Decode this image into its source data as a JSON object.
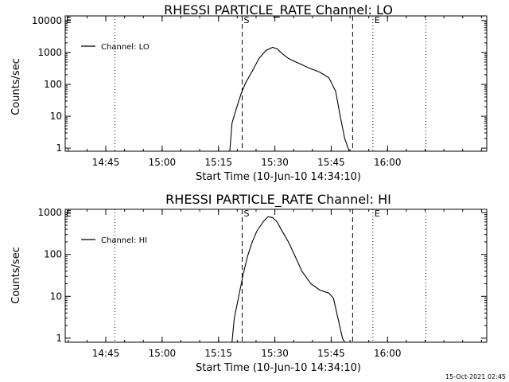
{
  "timestamp": "15-Oct-2021 02:45",
  "chart_data": [
    {
      "type": "line",
      "title": "RHESSI PARTICLE_RATE Channel: LO",
      "xlabel": "Start Time (10-Jun-10 14:34:10)",
      "ylabel": "Counts/sec",
      "yscale": "log",
      "xlim": [
        14.57,
        16.44
      ],
      "ylim": [
        0.8,
        14000
      ],
      "xticks": [
        {
          "t": 14.75,
          "label": "14:45"
        },
        {
          "t": 15.0,
          "label": "15:00"
        },
        {
          "t": 15.25,
          "label": "15:15"
        },
        {
          "t": 15.5,
          "label": "15:30"
        },
        {
          "t": 15.75,
          "label": "15:45"
        },
        {
          "t": 16.0,
          "label": "16:00"
        }
      ],
      "yticks": [
        {
          "v": 1,
          "label": "1"
        },
        {
          "v": 10,
          "label": "10"
        },
        {
          "v": 100,
          "label": "100"
        },
        {
          "v": 1000,
          "label": "1000"
        },
        {
          "v": 10000,
          "label": "10000"
        }
      ],
      "legend": [
        "Channel: LO"
      ],
      "series": [
        {
          "name": "Channel: LO",
          "x": [
            15.3,
            15.31,
            15.33,
            15.35,
            15.37,
            15.4,
            15.43,
            15.46,
            15.49,
            15.51,
            15.53,
            15.56,
            15.6,
            15.65,
            15.7,
            15.74,
            15.77,
            15.79,
            15.81,
            15.83
          ],
          "y": [
            0.8,
            6,
            18,
            50,
            110,
            260,
            650,
            1150,
            1450,
            1300,
            950,
            650,
            480,
            330,
            240,
            160,
            60,
            10,
            2,
            0.8
          ]
        }
      ],
      "vlines": [
        {
          "t": 14.79,
          "style": "dotted",
          "label": ""
        },
        {
          "t": 15.355,
          "style": "dashed",
          "label": "S"
        },
        {
          "t": 15.845,
          "style": "dashed",
          "label": ""
        },
        {
          "t": 15.935,
          "style": "dotted",
          "label": "E"
        },
        {
          "t": 16.17,
          "style": "dotted",
          "label": ""
        }
      ]
    },
    {
      "type": "line",
      "title": "RHESSI PARTICLE_RATE Channel: HI",
      "xlabel": "Start Time (10-Jun-10 14:34:10)",
      "ylabel": "Counts/sec",
      "yscale": "log",
      "xlim": [
        14.57,
        16.44
      ],
      "ylim": [
        0.8,
        1200
      ],
      "xticks": [
        {
          "t": 14.75,
          "label": "14:45"
        },
        {
          "t": 15.0,
          "label": "15:00"
        },
        {
          "t": 15.25,
          "label": "15:15"
        },
        {
          "t": 15.5,
          "label": "15:30"
        },
        {
          "t": 15.75,
          "label": "15:45"
        },
        {
          "t": 16.0,
          "label": "16:00"
        }
      ],
      "yticks": [
        {
          "v": 1,
          "label": "1"
        },
        {
          "v": 10,
          "label": "10"
        },
        {
          "v": 100,
          "label": "100"
        },
        {
          "v": 1000,
          "label": "1000"
        }
      ],
      "legend": [
        "Channel: HI"
      ],
      "series": [
        {
          "name": "Channel: HI",
          "x": [
            15.31,
            15.32,
            15.34,
            15.36,
            15.38,
            15.4,
            15.42,
            15.45,
            15.47,
            15.49,
            15.51,
            15.53,
            15.56,
            15.59,
            15.62,
            15.66,
            15.7,
            15.74,
            15.76,
            15.78,
            15.8,
            15.81
          ],
          "y": [
            0.8,
            3,
            10,
            35,
            95,
            200,
            360,
            620,
            800,
            760,
            600,
            380,
            200,
            90,
            40,
            20,
            14,
            12,
            9,
            3,
            1,
            0.8
          ]
        }
      ],
      "vlines": [
        {
          "t": 14.79,
          "style": "dotted",
          "label": ""
        },
        {
          "t": 15.355,
          "style": "dashed",
          "label": "S"
        },
        {
          "t": 15.845,
          "style": "dashed",
          "label": ""
        },
        {
          "t": 15.935,
          "style": "dotted",
          "label": "E"
        },
        {
          "t": 16.17,
          "style": "dotted",
          "label": ""
        }
      ]
    }
  ]
}
